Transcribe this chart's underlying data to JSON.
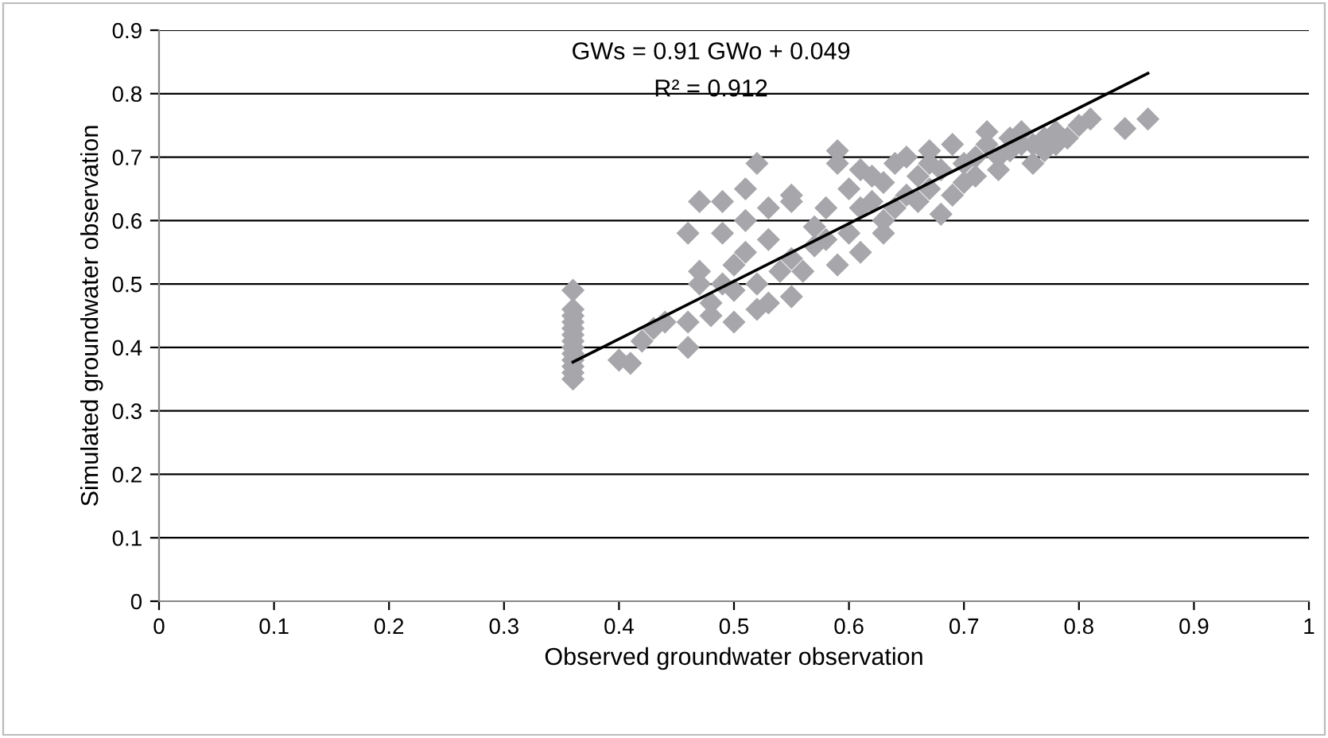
{
  "chart_data": {
    "type": "scatter",
    "xlabel": "Observed groundwater observation",
    "ylabel": "Simulated groundwater observation",
    "annotations": [
      "GWs = 0.91 GWo + 0.049",
      "R² = 0.912"
    ],
    "xlim": [
      0,
      1
    ],
    "xticks": [
      0,
      0.1,
      0.2,
      0.3,
      0.4,
      0.5,
      0.6,
      0.7,
      0.8,
      0.9,
      1
    ],
    "ylim": [
      0,
      0.9
    ],
    "yticks": [
      0,
      0.1,
      0.2,
      0.3,
      0.4,
      0.5,
      0.6,
      0.7,
      0.8,
      0.9
    ],
    "grid": "y",
    "legend": false,
    "marker": "diamond",
    "series": [
      {
        "color": "#a6a6ab",
        "x": [
          0.36,
          0.36,
          0.36,
          0.36,
          0.36,
          0.36,
          0.36,
          0.36,
          0.36,
          0.36,
          0.36,
          0.36,
          0.36,
          0.4,
          0.41,
          0.42,
          0.43,
          0.44,
          0.46,
          0.46,
          0.46,
          0.47,
          0.47,
          0.47,
          0.48,
          0.48,
          0.49,
          0.49,
          0.49,
          0.5,
          0.5,
          0.5,
          0.51,
          0.51,
          0.51,
          0.52,
          0.52,
          0.52,
          0.53,
          0.53,
          0.53,
          0.54,
          0.55,
          0.55,
          0.55,
          0.55,
          0.56,
          0.57,
          0.57,
          0.58,
          0.58,
          0.59,
          0.59,
          0.59,
          0.6,
          0.6,
          0.61,
          0.61,
          0.61,
          0.62,
          0.62,
          0.63,
          0.63,
          0.63,
          0.64,
          0.64,
          0.65,
          0.65,
          0.66,
          0.66,
          0.67,
          0.67,
          0.67,
          0.68,
          0.68,
          0.69,
          0.69,
          0.7,
          0.7,
          0.71,
          0.71,
          0.72,
          0.72,
          0.73,
          0.73,
          0.74,
          0.74,
          0.75,
          0.75,
          0.76,
          0.76,
          0.77,
          0.77,
          0.78,
          0.78,
          0.79,
          0.8,
          0.81,
          0.84,
          0.86
        ],
        "values": [
          0.35,
          0.36,
          0.37,
          0.38,
          0.39,
          0.4,
          0.41,
          0.42,
          0.43,
          0.44,
          0.45,
          0.46,
          0.49,
          0.38,
          0.375,
          0.41,
          0.43,
          0.44,
          0.4,
          0.44,
          0.58,
          0.52,
          0.5,
          0.63,
          0.47,
          0.45,
          0.63,
          0.58,
          0.5,
          0.49,
          0.44,
          0.53,
          0.65,
          0.6,
          0.55,
          0.69,
          0.5,
          0.46,
          0.57,
          0.62,
          0.47,
          0.52,
          0.64,
          0.63,
          0.54,
          0.48,
          0.52,
          0.56,
          0.59,
          0.62,
          0.57,
          0.71,
          0.69,
          0.53,
          0.58,
          0.65,
          0.68,
          0.55,
          0.62,
          0.67,
          0.63,
          0.66,
          0.6,
          0.58,
          0.62,
          0.69,
          0.7,
          0.64,
          0.63,
          0.67,
          0.71,
          0.69,
          0.65,
          0.61,
          0.68,
          0.72,
          0.64,
          0.69,
          0.66,
          0.7,
          0.67,
          0.74,
          0.72,
          0.7,
          0.68,
          0.73,
          0.71,
          0.72,
          0.74,
          0.69,
          0.72,
          0.71,
          0.73,
          0.74,
          0.72,
          0.73,
          0.75,
          0.76,
          0.745,
          0.76
        ]
      },
      {
        "type": "line",
        "color": "#000000",
        "marker": "none",
        "x": [
          0.36,
          0.86
        ],
        "values": [
          0.377,
          0.832
        ]
      }
    ]
  }
}
